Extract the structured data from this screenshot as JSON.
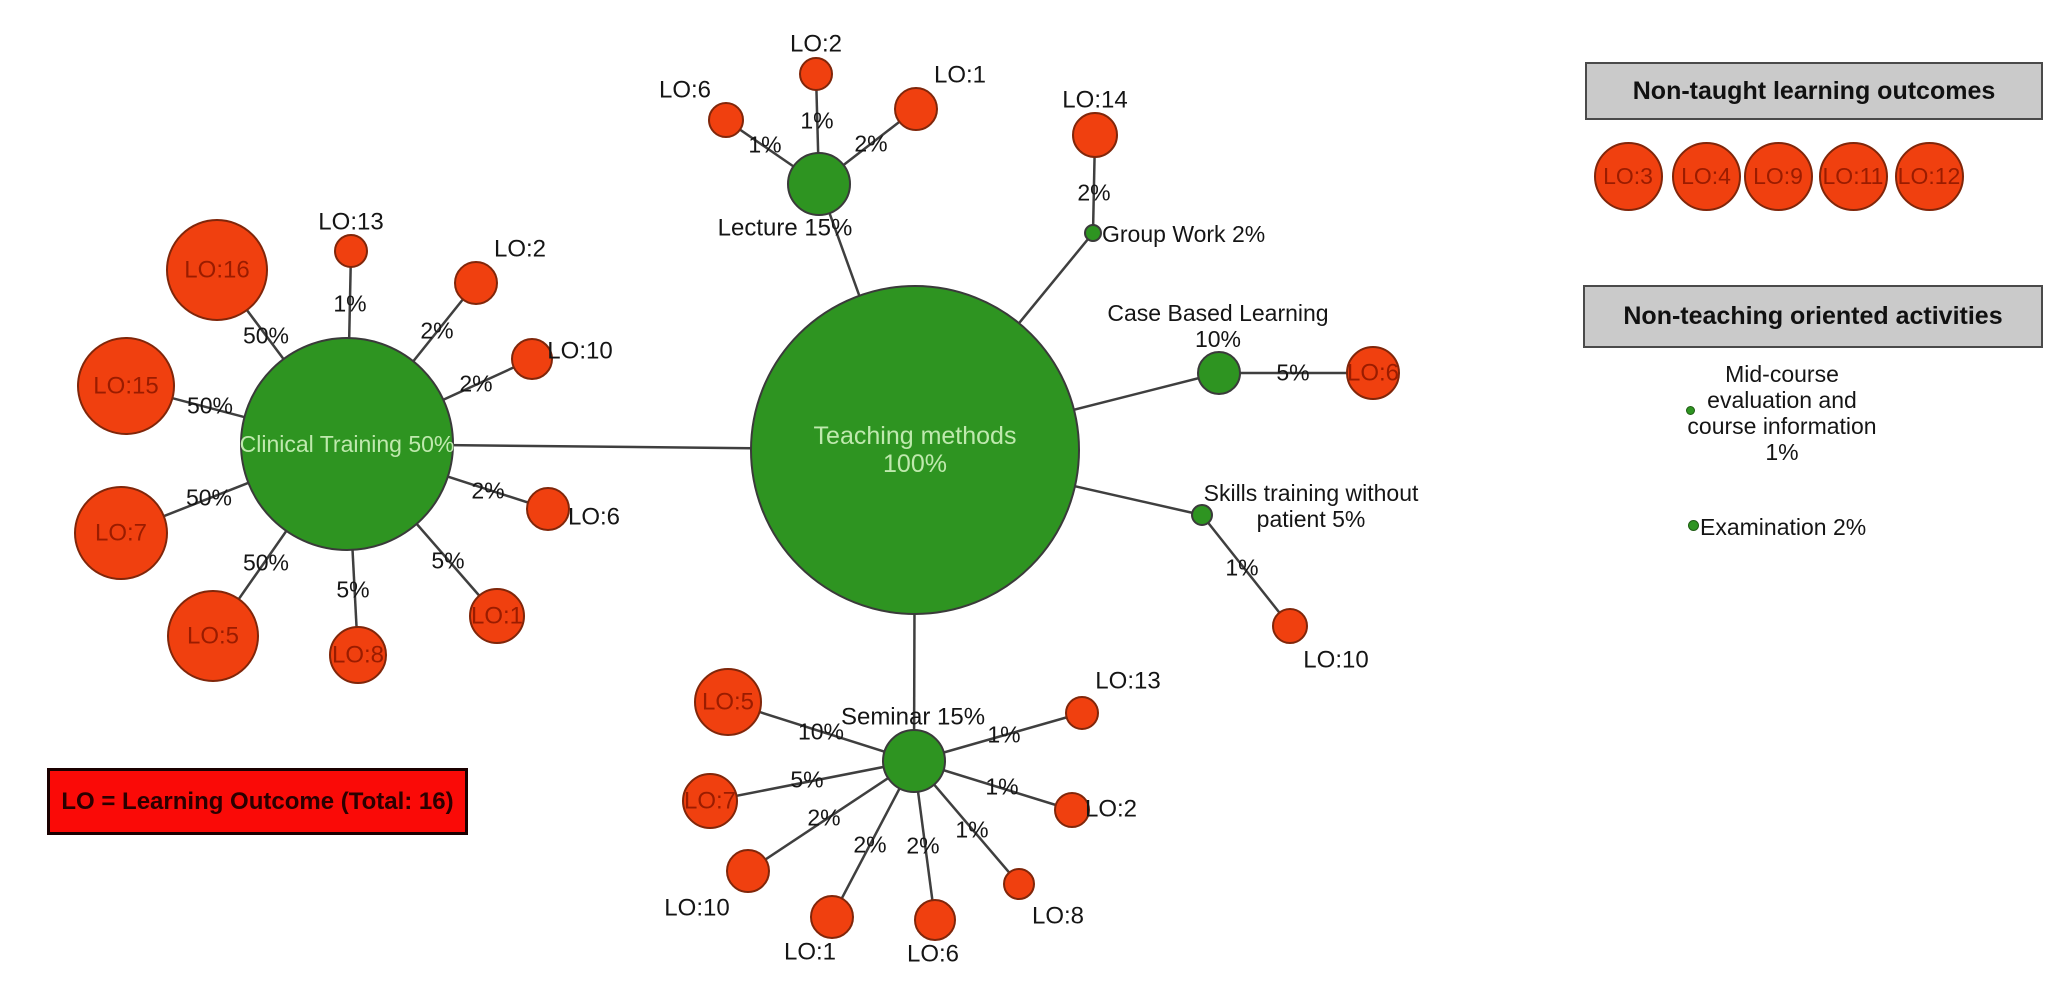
{
  "colors": {
    "method_fill": "#2e9421",
    "method_border": "#3a3a3a",
    "method_text": "#bfe9ae",
    "outcome_fill": "#f0400f",
    "outcome_border": "#80260a",
    "outcome_text": "#9a1c00",
    "edge": "#3f3f3f",
    "panel_header_bg": "#cacaca",
    "legend_bg": "#fa0a07"
  },
  "legend_box": {
    "label": "LO = Learning Outcome (Total: 16)"
  },
  "panels": {
    "non_taught": {
      "title": "Non-taught learning outcomes",
      "items": [
        "LO:3",
        "LO:4",
        "LO:9",
        "LO:11",
        "LO:12"
      ]
    },
    "non_teaching": {
      "title": "Non-teaching oriented activities",
      "activities": [
        {
          "label": "Mid-course\nevaluation and\ncourse information\n1%"
        },
        {
          "label": "Examination 2%"
        }
      ]
    }
  },
  "diagram": {
    "nodes": [
      {
        "id": "teaching",
        "type": "method",
        "label": "Teaching methods\n100%"
      },
      {
        "id": "clinical",
        "type": "method",
        "label": "Clinical Training 50%"
      },
      {
        "id": "lecture",
        "type": "method",
        "label": "Lecture 15%"
      },
      {
        "id": "seminar",
        "type": "method",
        "label": "Seminar 15%"
      },
      {
        "id": "case",
        "type": "method",
        "label": "Case Based Learning\n10%"
      },
      {
        "id": "skills",
        "type": "method",
        "label": "Skills training without\npatient 5%"
      },
      {
        "id": "groupwork",
        "type": "method",
        "label": "Group Work 2%"
      },
      {
        "id": "cl16",
        "type": "outcome",
        "label": "LO:16"
      },
      {
        "id": "cl13",
        "type": "outcome",
        "label": "LO:13"
      },
      {
        "id": "cl2",
        "type": "outcome",
        "label": "LO:2"
      },
      {
        "id": "cl10",
        "type": "outcome",
        "label": "LO:10"
      },
      {
        "id": "cl15",
        "type": "outcome",
        "label": "LO:15"
      },
      {
        "id": "cl6",
        "type": "outcome",
        "label": "LO:6"
      },
      {
        "id": "cl7",
        "type": "outcome",
        "label": "LO:7"
      },
      {
        "id": "cl5",
        "type": "outcome",
        "label": "LO:5"
      },
      {
        "id": "cl8",
        "type": "outcome",
        "label": "LO:8"
      },
      {
        "id": "cl1",
        "type": "outcome",
        "label": "LO:1"
      },
      {
        "id": "le6",
        "type": "outcome",
        "label": "LO:6"
      },
      {
        "id": "le2",
        "type": "outcome",
        "label": "LO:2"
      },
      {
        "id": "le1",
        "type": "outcome",
        "label": "LO:1"
      },
      {
        "id": "gw14",
        "type": "outcome",
        "label": "LO:14"
      },
      {
        "id": "cb6",
        "type": "outcome",
        "label": "LO:6"
      },
      {
        "id": "sk10",
        "type": "outcome",
        "label": "LO:10"
      },
      {
        "id": "se5",
        "type": "outcome",
        "label": "LO:5"
      },
      {
        "id": "se7",
        "type": "outcome",
        "label": "LO:7"
      },
      {
        "id": "se10",
        "type": "outcome",
        "label": "LO:10"
      },
      {
        "id": "se1",
        "type": "outcome",
        "label": "LO:1"
      },
      {
        "id": "se6",
        "type": "outcome",
        "label": "LO:6"
      },
      {
        "id": "se8",
        "type": "outcome",
        "label": "LO:8"
      },
      {
        "id": "se2",
        "type": "outcome",
        "label": "LO:2"
      },
      {
        "id": "se13",
        "type": "outcome",
        "label": "LO:13"
      }
    ],
    "edges": [
      {
        "from": "teaching",
        "to": "clinical",
        "label": ""
      },
      {
        "from": "teaching",
        "to": "lecture",
        "label": ""
      },
      {
        "from": "teaching",
        "to": "seminar",
        "label": ""
      },
      {
        "from": "teaching",
        "to": "case",
        "label": ""
      },
      {
        "from": "teaching",
        "to": "skills",
        "label": ""
      },
      {
        "from": "teaching",
        "to": "groupwork",
        "label": ""
      },
      {
        "from": "clinical",
        "to": "cl16",
        "label": "50%"
      },
      {
        "from": "clinical",
        "to": "cl13",
        "label": "1%"
      },
      {
        "from": "clinical",
        "to": "cl2",
        "label": "2%"
      },
      {
        "from": "clinical",
        "to": "cl10",
        "label": "2%"
      },
      {
        "from": "clinical",
        "to": "cl15",
        "label": "50%"
      },
      {
        "from": "clinical",
        "to": "cl6",
        "label": "2%"
      },
      {
        "from": "clinical",
        "to": "cl7",
        "label": "50%"
      },
      {
        "from": "clinical",
        "to": "cl5",
        "label": "50%"
      },
      {
        "from": "clinical",
        "to": "cl8",
        "label": "5%"
      },
      {
        "from": "clinical",
        "to": "cl1",
        "label": "5%"
      },
      {
        "from": "lecture",
        "to": "le6",
        "label": "1%"
      },
      {
        "from": "lecture",
        "to": "le2",
        "label": "1%"
      },
      {
        "from": "lecture",
        "to": "le1",
        "label": "2%"
      },
      {
        "from": "groupwork",
        "to": "gw14",
        "label": "2%"
      },
      {
        "from": "case",
        "to": "cb6",
        "label": "5%"
      },
      {
        "from": "skills",
        "to": "sk10",
        "label": "1%"
      },
      {
        "from": "seminar",
        "to": "se5",
        "label": "10%"
      },
      {
        "from": "seminar",
        "to": "se7",
        "label": "5%"
      },
      {
        "from": "seminar",
        "to": "se10",
        "label": "2%"
      },
      {
        "from": "seminar",
        "to": "se1",
        "label": "2%"
      },
      {
        "from": "seminar",
        "to": "se6",
        "label": "2%"
      },
      {
        "from": "seminar",
        "to": "se8",
        "label": "1%"
      },
      {
        "from": "seminar",
        "to": "se2",
        "label": "1%"
      },
      {
        "from": "seminar",
        "to": "se13",
        "label": "1%"
      }
    ]
  }
}
